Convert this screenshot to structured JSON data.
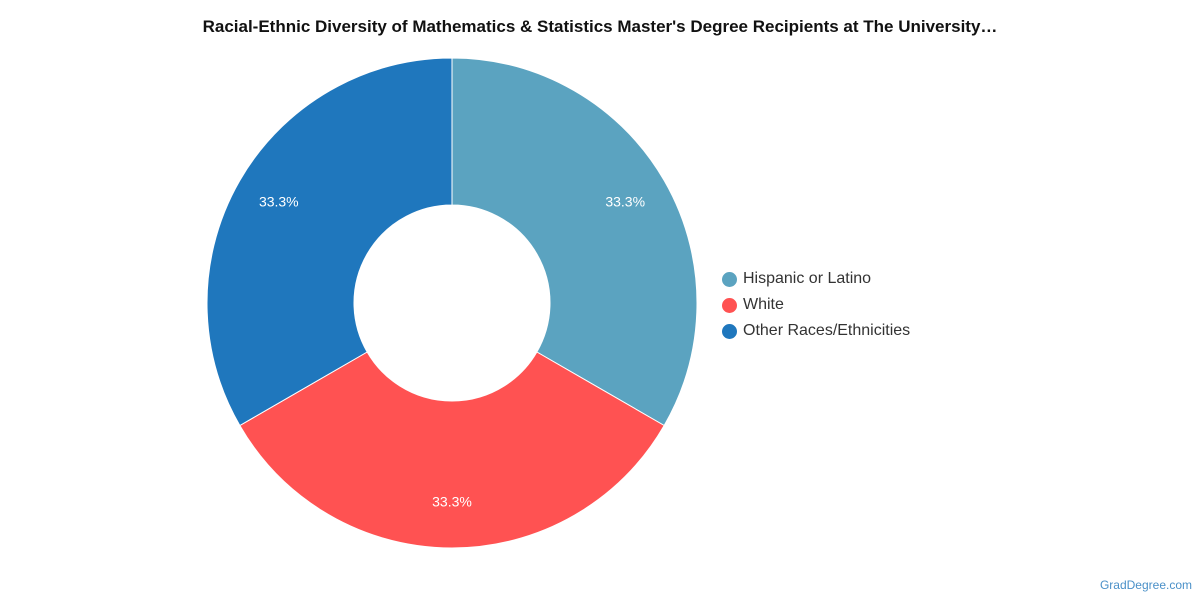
{
  "title": "Racial-Ethnic Diversity of Mathematics & Statistics Master's Degree Recipients at The University…",
  "credit": "GradDegree.com",
  "chart_data": {
    "type": "pie",
    "donut": true,
    "title": "Racial-Ethnic Diversity of Mathematics & Statistics Master's Degree Recipients at The University…",
    "categories": [
      "Hispanic or Latino",
      "White",
      "Other Races/Ethnicities"
    ],
    "values": [
      33.3,
      33.3,
      33.3
    ],
    "labels": [
      "33.3%",
      "33.3%",
      "33.3%"
    ],
    "colors": [
      "#5ba3c0",
      "#ff5252",
      "#1f77bd"
    ],
    "legend_position": "right"
  }
}
